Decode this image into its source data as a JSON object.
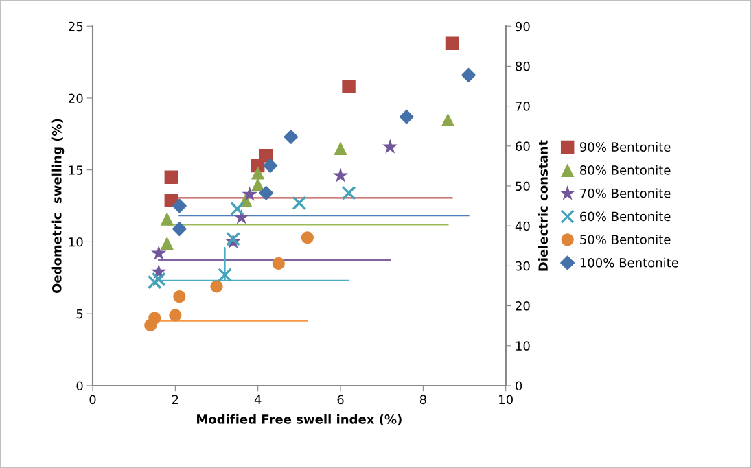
{
  "chart_data": {
    "type": "scatter",
    "xlabel": "Modified Free swell index (%)",
    "ylabel": "Oedometric  swelling (%)",
    "y2label": "Dielectric constant",
    "xlim": [
      0,
      10
    ],
    "xticks": [
      0,
      2,
      4,
      6,
      8,
      10
    ],
    "ylim": [
      0,
      25
    ],
    "yticks": [
      0,
      5,
      10,
      15,
      20,
      25
    ],
    "y2lim": [
      0,
      90
    ],
    "y2ticks": [
      0,
      10,
      20,
      30,
      40,
      50,
      60,
      70,
      80,
      90
    ],
    "grid": false,
    "legend": "right",
    "series": [
      {
        "name": "90% Bentonite",
        "color": "#b0463f",
        "marker": "square",
        "x": [
          1.9,
          1.9,
          4.0,
          4.2,
          6.2,
          8.7
        ],
        "values": [
          14.5,
          12.9,
          15.3,
          16.0,
          20.8,
          23.8
        ]
      },
      {
        "name": "80% Bentonite",
        "color": "#8aa84a",
        "marker": "triangle",
        "x": [
          1.8,
          1.8,
          3.7,
          4.0,
          4.0,
          6.0,
          8.6
        ],
        "values": [
          11.6,
          9.9,
          12.9,
          14.0,
          14.8,
          16.5,
          18.5
        ]
      },
      {
        "name": "70% Bentonite",
        "color": "#72569a",
        "marker": "star",
        "x": [
          1.6,
          1.6,
          3.4,
          3.6,
          3.8,
          6.0,
          7.2
        ],
        "values": [
          9.2,
          7.9,
          10.0,
          11.7,
          13.3,
          14.6,
          16.6
        ]
      },
      {
        "name": "60% Bentonite",
        "color": "#44a3bb",
        "marker": "cross",
        "x": [
          1.5,
          1.6,
          3.2,
          3.4,
          3.5,
          5.0,
          6.2
        ],
        "values": [
          7.2,
          7.4,
          7.7,
          10.2,
          12.3,
          12.7,
          13.4
        ]
      },
      {
        "name": "50% Bentonite",
        "color": "#df8538",
        "marker": "circle",
        "x": [
          1.4,
          1.5,
          2.0,
          2.1,
          3.0,
          4.5,
          5.2
        ],
        "values": [
          4.2,
          4.7,
          4.9,
          6.2,
          6.9,
          8.5,
          10.3
        ]
      },
      {
        "name": "100% Bentonite",
        "color": "#4571aa",
        "marker": "diamond",
        "x": [
          2.1,
          2.1,
          4.2,
          4.3,
          4.8,
          7.6,
          9.1
        ],
        "values": [
          12.5,
          10.9,
          13.4,
          15.3,
          17.3,
          18.7,
          21.6
        ]
      },
      {
        "type": "line",
        "axis": "y2",
        "color": "#c0504d",
        "marker": "none",
        "x": [
          1.9,
          8.7
        ],
        "values": [
          47,
          47
        ]
      },
      {
        "type": "line",
        "axis": "y2",
        "color": "#9bbb59",
        "marker": "none",
        "x": [
          1.8,
          8.6
        ],
        "values": [
          40.3,
          40.3
        ]
      },
      {
        "type": "line",
        "axis": "y2",
        "color": "#8064a2",
        "marker": "none",
        "x": [
          1.6,
          7.2
        ],
        "values": [
          31.4,
          31.4
        ]
      },
      {
        "type": "line",
        "axis": "y2",
        "color": "#4bacc6",
        "marker": "none",
        "x": [
          1.55,
          1.55,
          3.2,
          3.2,
          3.2,
          6.2
        ],
        "values": [
          29,
          26.3,
          26.3,
          34.5,
          26.3,
          26.3
        ]
      },
      {
        "type": "line",
        "axis": "y2",
        "color": "#f79646",
        "marker": "none",
        "x": [
          1.4,
          5.2
        ],
        "values": [
          16.2,
          16.2
        ]
      },
      {
        "type": "line",
        "axis": "y2",
        "color": "#4f81bd",
        "marker": "none",
        "x": [
          2.1,
          9.1
        ],
        "values": [
          42.6,
          42.6
        ]
      }
    ]
  }
}
